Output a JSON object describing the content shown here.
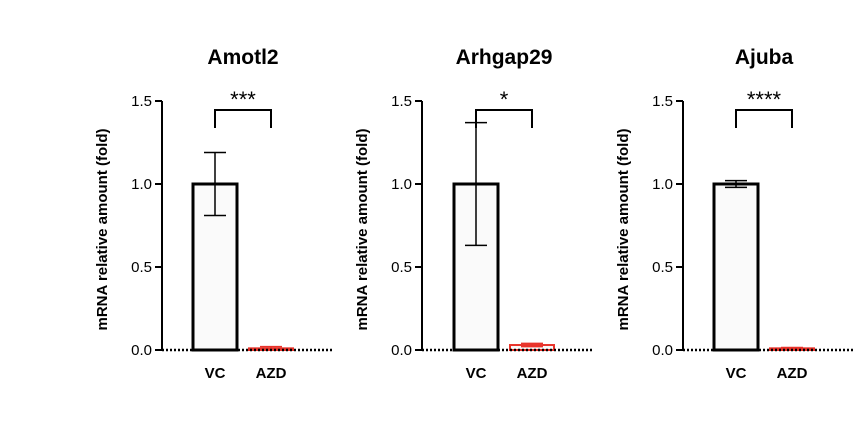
{
  "colors": {
    "control": "#000000",
    "treated": "#e8332a",
    "bar_fill": "#fafafa"
  },
  "chart_data": [
    {
      "type": "bar",
      "title": "Amotl2",
      "ylabel": "mRNA relative amount (fold)",
      "categories": [
        "VC",
        "AZD"
      ],
      "values": [
        1.0,
        0.01
      ],
      "error": [
        0.19,
        0.01
      ],
      "ylim": [
        0,
        1.5
      ],
      "yticks": [
        "0.0",
        "0.5",
        "1.0",
        "1.5"
      ],
      "significance": "***"
    },
    {
      "type": "bar",
      "title": "Arhgap29",
      "ylabel": "mRNA relative amount (fold)",
      "categories": [
        "VC",
        "AZD"
      ],
      "values": [
        1.0,
        0.03
      ],
      "error": [
        0.37,
        0.01
      ],
      "ylim": [
        0,
        1.5
      ],
      "yticks": [
        "0.0",
        "0.5",
        "1.0",
        "1.5"
      ],
      "significance": "*"
    },
    {
      "type": "bar",
      "title": "Ajuba",
      "ylabel": "mRNA relative amount (fold)",
      "categories": [
        "VC",
        "AZD"
      ],
      "values": [
        1.0,
        0.01
      ],
      "error": [
        0.02,
        0.005
      ],
      "ylim": [
        0,
        1.5
      ],
      "yticks": [
        "0.0",
        "0.5",
        "1.0",
        "1.5"
      ],
      "significance": "****"
    }
  ]
}
